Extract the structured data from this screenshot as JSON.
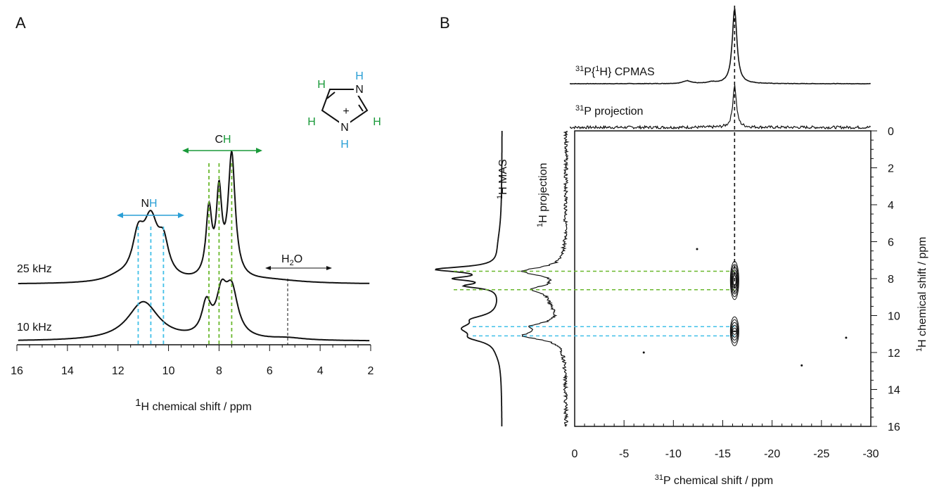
{
  "colors": {
    "nh": "#2a9fd6",
    "ch": "#1a9a3a",
    "dash_nh": "#42c0e8",
    "dash_ch": "#6ab82e",
    "black": "#111111"
  },
  "panel_a": {
    "label": "A",
    "ch_label_c": "C",
    "ch_label_h": "H",
    "nh_label_n": "N",
    "nh_label_h": "H",
    "h2o_h": "H",
    "h2o_sub": "2",
    "h2o_o": "O",
    "trace_25": "25 kHz",
    "trace_10": "10 kHz",
    "xlabel_sup": "1",
    "xlabel_rest": "H chemical shift / ppm",
    "molecule": {
      "plus": "+",
      "n": "N",
      "h": "H"
    }
  },
  "panel_b": {
    "label": "B",
    "cpmas_sup1": "31",
    "cpmas_mid": "P{",
    "cpmas_sup2": "1",
    "cpmas_rest": "H} CPMAS",
    "proj31_sup": "31",
    "proj31_rest": "P projection",
    "hmas_sup": "1",
    "hmas_rest": "H MAS",
    "hproj_sup": "1",
    "hproj_rest": "H projection",
    "xlabel_sup": "31",
    "xlabel_rest": "P chemical shift / ppm",
    "ylabel_sup": "1",
    "ylabel_rest": "H chemical shift / ppm"
  },
  "chart_data": [
    {
      "type": "line",
      "panel": "A",
      "x_axis": {
        "label": "1H chemical shift / ppm",
        "range": [
          16,
          2
        ],
        "ticks": [
          16,
          14,
          12,
          10,
          8,
          6,
          4,
          2
        ]
      },
      "series": [
        {
          "name": "25 kHz",
          "peaks_ppm": [
            11.2,
            10.7,
            10.2,
            8.4,
            8.0,
            7.5
          ],
          "relative_heights": [
            0.55,
            0.8,
            0.45,
            0.95,
            1.15,
            1.75
          ]
        },
        {
          "name": "10 kHz",
          "peaks_ppm": [
            11.0,
            8.5,
            7.9,
            7.5
          ],
          "relative_heights": [
            0.55,
            0.45,
            0.55,
            0.65
          ]
        }
      ],
      "annotations": [
        {
          "text": "NH",
          "range_ppm": [
            12.0,
            9.5
          ]
        },
        {
          "text": "CH",
          "range_ppm": [
            9.8,
            6.3
          ]
        },
        {
          "text": "H2O",
          "range_ppm": [
            6.2,
            3.4
          ],
          "marker_ppm": 5.3
        }
      ],
      "marker_lines_ppm": {
        "NH": [
          11.2,
          10.7,
          10.2
        ],
        "CH": [
          8.4,
          8.0,
          7.5
        ]
      }
    },
    {
      "type": "heatmap",
      "panel": "B",
      "x_axis": {
        "label": "31P chemical shift / ppm",
        "range": [
          0,
          -30
        ],
        "ticks": [
          0,
          -5,
          -10,
          -15,
          -20,
          -25,
          -30
        ]
      },
      "y_axis": {
        "label": "1H chemical shift / ppm",
        "range": [
          0,
          16
        ],
        "ticks": [
          0,
          2,
          4,
          6,
          8,
          10,
          12,
          14,
          16
        ]
      },
      "cross_peaks": [
        {
          "p31_ppm": -16.2,
          "h1_ppm": [
            7.6,
            8.6
          ]
        },
        {
          "p31_ppm": -16.2,
          "h1_ppm": [
            10.6,
            11.1
          ]
        }
      ],
      "f2_projection_peak_ppm": -16.2,
      "h1_correlation_lines_ppm": {
        "CH": [
          7.6,
          8.6
        ],
        "NH": [
          10.6,
          11.1
        ]
      }
    }
  ]
}
